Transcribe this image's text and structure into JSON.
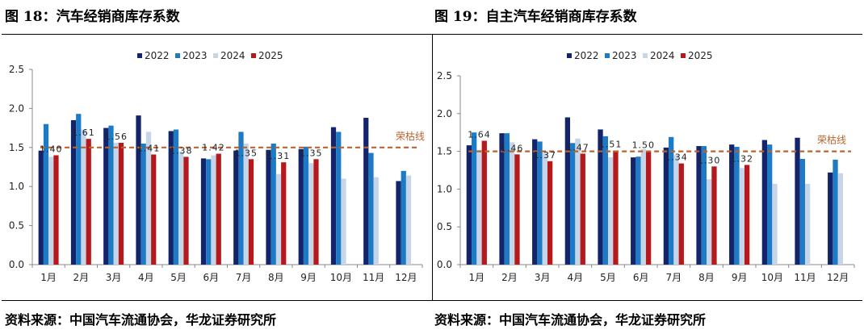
{
  "colors": {
    "y2022": "#13246b",
    "y2023": "#1d7ac4",
    "y2024": "#c6d5e8",
    "y2025": "#b5191c",
    "threshold": "#b8632e",
    "axis": "#888888"
  },
  "source_left": "资料来源：中国汽车流通协会，华龙证券研究所",
  "source_right": "资料来源：中国汽车流通协会，华龙证券研究所",
  "chart_data": [
    {
      "type": "bar",
      "title": "图 18：汽车经销商库存系数",
      "categories": [
        "1月",
        "2月",
        "3月",
        "4月",
        "5月",
        "6月",
        "7月",
        "8月",
        "9月",
        "10月",
        "11月",
        "12月"
      ],
      "series": [
        {
          "name": "2022",
          "values": [
            1.46,
            1.85,
            1.75,
            1.91,
            1.71,
            1.36,
            1.46,
            1.47,
            1.48,
            1.76,
            1.88,
            1.07
          ]
        },
        {
          "name": "2023",
          "values": [
            1.8,
            1.93,
            1.78,
            1.55,
            1.73,
            1.35,
            1.7,
            1.55,
            1.51,
            1.7,
            1.43,
            1.2
          ]
        },
        {
          "name": "2024",
          "values": [
            1.38,
            1.73,
            1.56,
            1.7,
            1.45,
            1.4,
            1.55,
            1.16,
            1.3,
            1.1,
            1.12,
            1.14
          ]
        },
        {
          "name": "2025",
          "values": [
            1.4,
            1.61,
            1.56,
            1.41,
            1.38,
            1.42,
            1.35,
            1.31,
            1.35,
            null,
            null,
            null
          ]
        }
      ],
      "data_labels": [
        "1.40",
        "1.61",
        "1.56",
        "1.41",
        "1.38",
        "1.42",
        "1.35",
        "1.31",
        "1.35"
      ],
      "yticks": [
        "0.0",
        "0.5",
        "1.0",
        "1.5",
        "2.0",
        "2.5"
      ],
      "ylim": [
        0,
        2.5
      ],
      "threshold": {
        "value": 1.5,
        "label": "荣枯线"
      },
      "legend": [
        "2022",
        "2023",
        "2024",
        "2025"
      ],
      "legend_position": "top-center",
      "xlabel": "",
      "ylabel": ""
    },
    {
      "type": "bar",
      "title": "图 19：自主汽车经销商库存系数",
      "categories": [
        "1月",
        "2月",
        "3月",
        "4月",
        "5月",
        "6月",
        "7月",
        "8月",
        "9月",
        "10月",
        "11月",
        "12月"
      ],
      "series": [
        {
          "name": "2022",
          "values": [
            1.58,
            1.74,
            1.66,
            1.95,
            1.79,
            1.42,
            1.55,
            1.57,
            1.59,
            1.65,
            1.68,
            1.22
          ]
        },
        {
          "name": "2023",
          "values": [
            1.75,
            1.74,
            1.63,
            1.61,
            1.7,
            1.43,
            1.69,
            1.57,
            1.56,
            1.59,
            1.4,
            1.39
          ]
        },
        {
          "name": "2024",
          "values": [
            1.52,
            1.62,
            1.48,
            1.67,
            1.42,
            1.53,
            1.45,
            1.13,
            1.28,
            1.07,
            1.07,
            1.21
          ]
        },
        {
          "name": "2025",
          "values": [
            1.64,
            1.46,
            1.37,
            1.47,
            1.51,
            1.5,
            1.34,
            1.3,
            1.32,
            null,
            null,
            null
          ]
        }
      ],
      "data_labels": [
        "1.64",
        "1.46",
        "1.37",
        "1.47",
        "1.51",
        "1.50",
        "1.34",
        "1.30",
        "1.32"
      ],
      "yticks": [
        "0.0",
        "0.5",
        "1.0",
        "1.5",
        "2.0",
        "2.5"
      ],
      "ylim": [
        0,
        2.5
      ],
      "threshold": {
        "value": 1.5,
        "label": "荣枯线"
      },
      "legend": [
        "2022",
        "2023",
        "2024",
        "2025"
      ],
      "legend_position": "top-center",
      "xlabel": "",
      "ylabel": ""
    }
  ]
}
